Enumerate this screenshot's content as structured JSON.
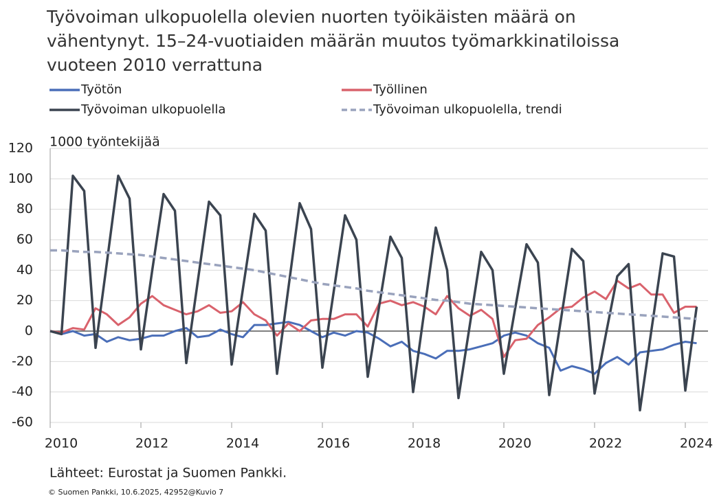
{
  "chart_data": {
    "type": "line",
    "title": [
      "Työvoiman ulkopuolella olevien nuorten työikäisten määrä on",
      "vähentynyt. 15–24-vuotiaiden määrän muutos työmarkkinatiloissa",
      "vuoteen 2010 verrattuna"
    ],
    "y_label": "1000 työntekijää",
    "source": "Lähteet: Eurostat ja Suomen Pankki.",
    "footer": "© Suomen Pankki, 10.6.2025,  42952@Kuvio  7",
    "x": [
      2010,
      2010.25,
      2010.5,
      2010.75,
      2011,
      2011.25,
      2011.5,
      2011.75,
      2012,
      2012.25,
      2012.5,
      2012.75,
      2013,
      2013.25,
      2013.5,
      2013.75,
      2014,
      2014.25,
      2014.5,
      2014.75,
      2015,
      2015.25,
      2015.5,
      2015.75,
      2016,
      2016.25,
      2016.5,
      2016.75,
      2017,
      2017.25,
      2017.5,
      2017.75,
      2018,
      2018.25,
      2018.5,
      2018.75,
      2019,
      2019.25,
      2019.5,
      2019.75,
      2020,
      2020.25,
      2020.5,
      2020.75,
      2021,
      2021.25,
      2021.5,
      2021.75,
      2022,
      2022.25,
      2022.5,
      2022.75,
      2023,
      2023.25,
      2023.5,
      2023.75,
      2024,
      2024.25
    ],
    "series": [
      {
        "name": "Työtön",
        "color": "#4a6eb8",
        "dashed": false,
        "values": [
          0,
          -2,
          0,
          -3,
          -2,
          -7,
          -4,
          -6,
          -5,
          -3,
          -3,
          0,
          2,
          -4,
          -3,
          1,
          -2,
          -4,
          4,
          4,
          5,
          6,
          4,
          0,
          -4,
          -1,
          -3,
          0,
          -1,
          -5,
          -10,
          -7,
          -13,
          -15,
          -18,
          -13,
          -13,
          -12,
          -10,
          -8,
          -3,
          -1,
          -3,
          -8,
          -11,
          -26,
          -23,
          -25,
          -28,
          -21,
          -17,
          -22,
          -14,
          -13,
          -12,
          -9,
          -7,
          -8
        ]
      },
      {
        "name": "Työllinen",
        "color": "#d9626c",
        "dashed": false,
        "values": [
          0,
          -1,
          2,
          1,
          15,
          11,
          4,
          9,
          18,
          23,
          17,
          14,
          11,
          13,
          17,
          12,
          13,
          19,
          11,
          7,
          -3,
          5,
          0,
          7,
          8,
          8,
          11,
          11,
          3,
          18,
          20,
          17,
          19,
          16,
          11,
          23,
          15,
          10,
          14,
          8,
          -17,
          -6,
          -5,
          4,
          9,
          15,
          16,
          22,
          26,
          21,
          33,
          28,
          31,
          24,
          24,
          12,
          16,
          16
        ]
      },
      {
        "name": "Työvoiman ulkopuolella",
        "color": "#3b4450",
        "dashed": false,
        "values": [
          0,
          -2,
          102,
          92,
          -11,
          45,
          102,
          87,
          -12,
          40,
          90,
          79,
          -21,
          32,
          85,
          76,
          -22,
          28,
          77,
          66,
          -28,
          28,
          84,
          67,
          -24,
          26,
          76,
          60,
          -30,
          16,
          62,
          48,
          -40,
          14,
          68,
          40,
          -44,
          4,
          52,
          40,
          -28,
          15,
          57,
          45,
          -42,
          6,
          54,
          46,
          -41,
          -2,
          36,
          44,
          -52,
          0,
          51,
          49,
          -39,
          16
        ]
      },
      {
        "name": "Työvoiman ulkopuolella, trendi",
        "color": "#9aa3bd",
        "dashed": true,
        "values": [
          53,
          53,
          52.5,
          52,
          52,
          51.5,
          51,
          50.5,
          50,
          49,
          48,
          47,
          46,
          45,
          44,
          43,
          42,
          41,
          40,
          38.5,
          37,
          35.5,
          34,
          32.5,
          31,
          30,
          29,
          28,
          26.5,
          25.5,
          24.5,
          23.5,
          22.5,
          21.5,
          20.5,
          20,
          19,
          18,
          17.5,
          17,
          16.5,
          16,
          15.5,
          15,
          14.5,
          14,
          13.5,
          13,
          12.5,
          12,
          11.5,
          11,
          10.5,
          10,
          9.5,
          9,
          8.5,
          8
        ]
      }
    ],
    "xlim": [
      2010,
      2024.5
    ],
    "xticks": [
      2010,
      2012,
      2014,
      2016,
      2018,
      2020,
      2022,
      2024
    ],
    "ylim": [
      -60,
      120
    ],
    "yticks": [
      -60,
      -40,
      -20,
      0,
      20,
      40,
      60,
      80,
      100,
      120
    ],
    "grid": true
  }
}
